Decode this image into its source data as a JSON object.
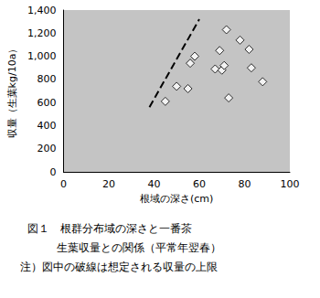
{
  "chart_data": {
    "type": "scatter",
    "x_label": "根域の深さ(cm)",
    "y_label": "収量（生葉kg/10a）",
    "caption": [
      "図１　根群分布域の深さと一番茶",
      "生葉収量との関係（平常年翌春）",
      "注）図中の破線は想定される収量の上限"
    ],
    "xlim": [
      0,
      100
    ],
    "xticks": [
      0,
      20,
      40,
      60,
      80,
      100
    ],
    "ylim": [
      0,
      1400
    ],
    "yticks": [
      0,
      200,
      400,
      600,
      800,
      1000,
      1200,
      1400
    ],
    "grid": false,
    "series": [
      {
        "type": "scatter",
        "marker": "diamond",
        "color": "#ffffff",
        "x": [
          45,
          50,
          55,
          56,
          58,
          67,
          69,
          70,
          71,
          72,
          73,
          78,
          82,
          83,
          88
        ],
        "values": [
          610,
          740,
          720,
          940,
          1000,
          890,
          1050,
          880,
          920,
          1230,
          640,
          1140,
          1060,
          900,
          780
        ]
      },
      {
        "type": "line",
        "line_style": "dashed",
        "color": "#000000",
        "x": [
          38,
          60
        ],
        "values": [
          560,
          1320
        ]
      }
    ]
  }
}
